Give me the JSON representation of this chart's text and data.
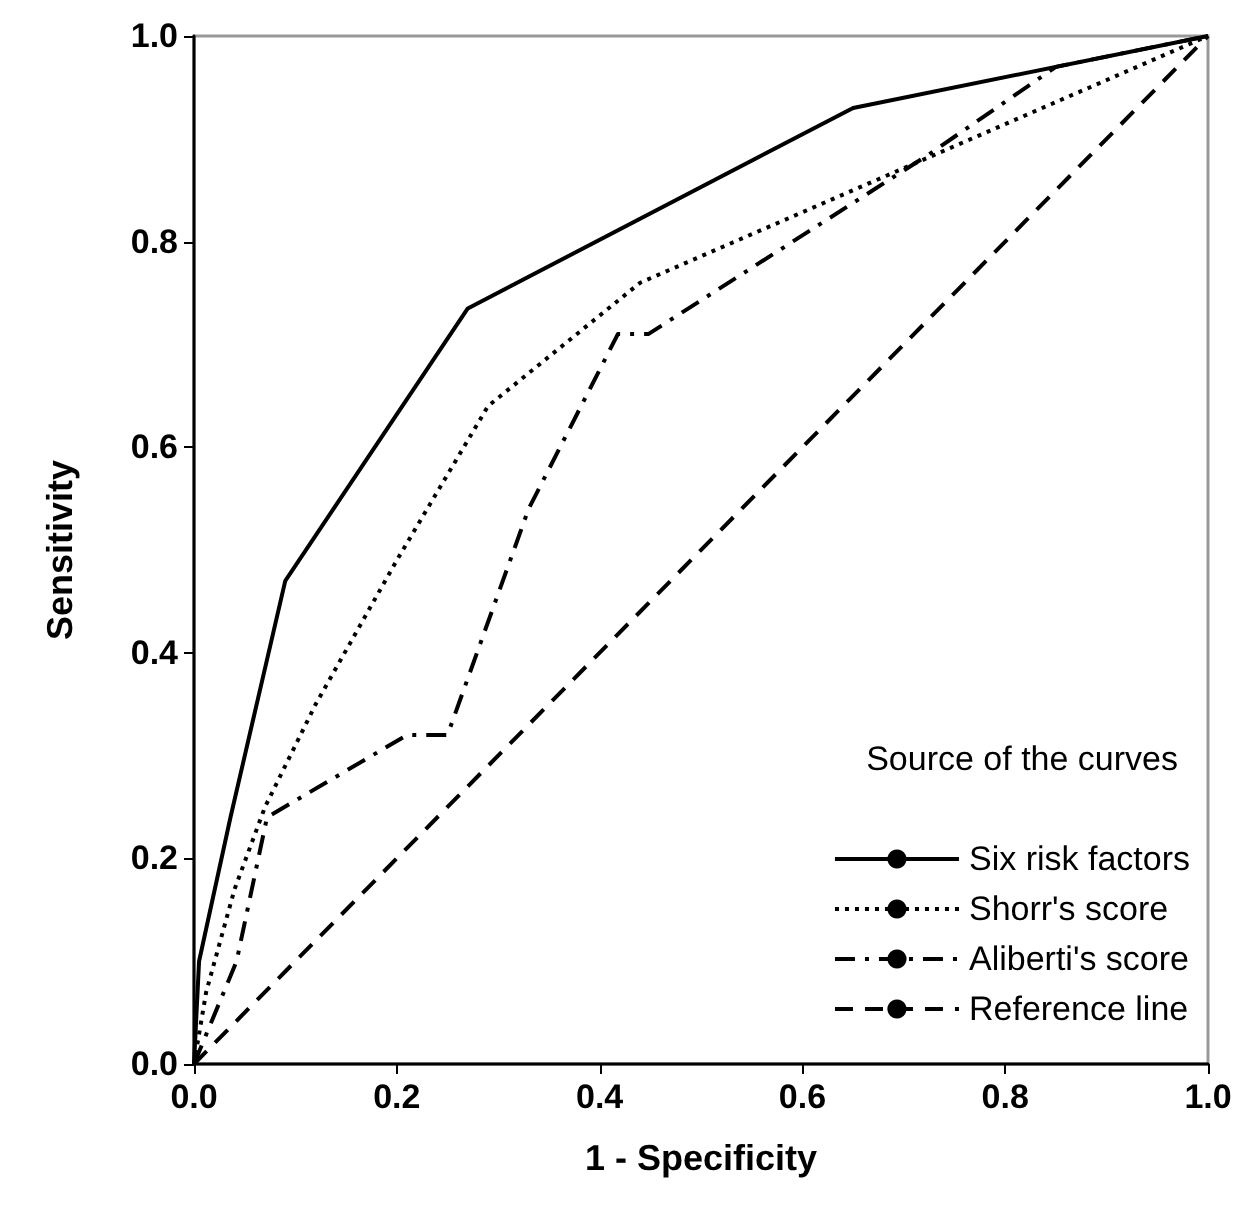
{
  "chart_data": {
    "type": "line",
    "xlabel": "1 - Specificity",
    "ylabel": "Sensitivity",
    "legend_title": "Source of the curves",
    "xlim": [
      0,
      1
    ],
    "ylim": [
      0,
      1
    ],
    "xticks": [
      {
        "value": 0,
        "label": "0.0"
      },
      {
        "value": 0.2,
        "label": "0.2"
      },
      {
        "value": 0.4,
        "label": "0.4"
      },
      {
        "value": 0.6,
        "label": "0.6"
      },
      {
        "value": 0.8,
        "label": "0.8"
      },
      {
        "value": 1,
        "label": "1.0"
      }
    ],
    "yticks": [
      {
        "value": 0,
        "label": "0.0"
      },
      {
        "value": 0.2,
        "label": "0.2"
      },
      {
        "value": 0.4,
        "label": "0.4"
      },
      {
        "value": 0.6,
        "label": "0.6"
      },
      {
        "value": 0.8,
        "label": "0.8"
      },
      {
        "value": 1,
        "label": "1.0"
      }
    ],
    "grid": false,
    "legend": "bottom right",
    "marker": "none",
    "series": [
      {
        "name": "Six risk factors",
        "color": "#000000",
        "line_style": "solid",
        "x": [
          0,
          0.005,
          0.036,
          0.09,
          0.27,
          0.65,
          1
        ],
        "values": [
          0,
          0.1,
          0.24,
          0.47,
          0.735,
          0.93,
          1
        ]
      },
      {
        "name": "Shorr's score",
        "color": "#000000",
        "line_style": "dotted",
        "x": [
          0,
          0.012,
          0.04,
          0.07,
          0.12,
          0.2,
          0.29,
          0.44,
          0.65,
          1
        ],
        "values": [
          0,
          0.07,
          0.17,
          0.25,
          0.35,
          0.49,
          0.64,
          0.76,
          0.85,
          1
        ]
      },
      {
        "name": "Aliberti's score",
        "color": "#000000",
        "line_style": "dashdot",
        "x": [
          0,
          0.042,
          0.072,
          0.21,
          0.25,
          0.33,
          0.418,
          0.448,
          0.725,
          0.85,
          1
        ],
        "values": [
          0,
          0.1,
          0.24,
          0.32,
          0.32,
          0.54,
          0.71,
          0.71,
          0.885,
          0.97,
          1
        ]
      },
      {
        "name": "Reference line",
        "color": "#000000",
        "line_style": "dashed",
        "x": [
          0,
          1
        ],
        "values": [
          0,
          1
        ]
      }
    ]
  }
}
